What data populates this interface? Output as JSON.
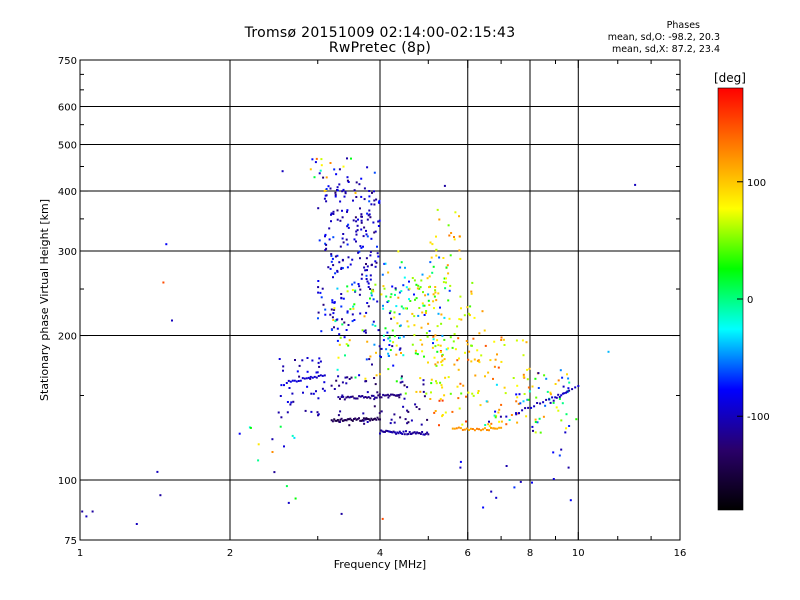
{
  "header": {
    "title_line1": "Tromsø 20151009 02:14:00-02:15:43",
    "title_line2": "RwPretec (8p)",
    "stats_title": "Phases",
    "stats_o": "mean, sd,O: -98.2, 20.3",
    "stats_x": "mean, sd,X:  87.2, 23.4"
  },
  "chart_data": {
    "type": "scatter",
    "title": "Tromsø 20151009 02:14:00-02:15:43",
    "subtitle": "RwPretec (8p)",
    "xlabel": "Frequency [MHz]",
    "ylabel": "Stationary phase Virtual Height [km]",
    "xscale": "log",
    "yscale": "log",
    "xlim": [
      1,
      16
    ],
    "ylim": [
      75,
      750
    ],
    "x_ticks": [
      1,
      2,
      4,
      6,
      8,
      10,
      16
    ],
    "x_minor_ticks": [
      3,
      5,
      7,
      9,
      12,
      14
    ],
    "y_ticks": [
      75,
      100,
      200,
      300,
      400,
      500,
      600,
      750
    ],
    "y_minor_ticks": [
      150,
      250,
      350,
      450,
      550,
      650,
      700
    ],
    "grid": true,
    "colorbar": {
      "label": "[deg]",
      "range": [
        -180,
        180
      ],
      "tick_values": [
        100,
        0,
        -100
      ],
      "tick_labels": [
        "100",
        "0",
        "-100"
      ],
      "colors": [
        "#000000",
        "#2a006a",
        "#0000ff",
        "#00ffff",
        "#00ff00",
        "#ffff00",
        "#ff8000",
        "#ff0000"
      ]
    },
    "clusters": [
      {
        "x": [
          3.0,
          4.0
        ],
        "y": [
          200,
          450
        ],
        "phase": [
          -130,
          -60
        ],
        "n": 160
      },
      {
        "x": [
          3.1,
          3.9
        ],
        "y": [
          260,
          420
        ],
        "phase": [
          -120,
          -90
        ],
        "n": 60
      },
      {
        "x": [
          4.0,
          5.6
        ],
        "y": [
          180,
          300
        ],
        "phase": [
          -80,
          120
        ],
        "n": 110
      },
      {
        "x": [
          3.2,
          4.5
        ],
        "y": [
          160,
          260
        ],
        "phase": [
          -120,
          120
        ],
        "n": 90
      },
      {
        "x": [
          4.5,
          6.5
        ],
        "y": [
          150,
          260
        ],
        "phase": [
          30,
          120
        ],
        "n": 90
      },
      {
        "x": [
          5.0,
          8.0
        ],
        "y": [
          130,
          200
        ],
        "phase": [
          60,
          160
        ],
        "n": 90
      },
      {
        "x": [
          6.5,
          10.0
        ],
        "y": [
          125,
          170
        ],
        "phase": [
          -120,
          140
        ],
        "n": 70
      },
      {
        "x": [
          2.5,
          3.2
        ],
        "y": [
          135,
          180
        ],
        "phase": [
          -120,
          -80
        ],
        "n": 45
      },
      {
        "x": [
          3.2,
          5.0
        ],
        "y": [
          130,
          165
        ],
        "phase": [
          -140,
          -100
        ],
        "n": 60
      },
      {
        "x": [
          2.9,
          3.6
        ],
        "y": [
          380,
          470
        ],
        "phase": [
          -110,
          140
        ],
        "n": 20
      },
      {
        "x": [
          5.0,
          5.8
        ],
        "y": [
          280,
          370
        ],
        "phase": [
          40,
          130
        ],
        "n": 20
      },
      {
        "x": [
          2.0,
          2.8
        ],
        "y": [
          85,
          130
        ],
        "phase": [
          -120,
          140
        ],
        "n": 15
      },
      {
        "x": [
          5.5,
          10.0
        ],
        "y": [
          85,
          120
        ],
        "phase": [
          -110,
          -60
        ],
        "n": 15
      }
    ],
    "lines": [
      {
        "x": [
          3.2,
          4.0
        ],
        "y": [
          133,
          134
        ],
        "phase": -140,
        "n": 40
      },
      {
        "x": [
          4.0,
          5.0
        ],
        "y": [
          126,
          125
        ],
        "phase": -110,
        "n": 40
      },
      {
        "x": [
          3.3,
          4.4
        ],
        "y": [
          148,
          150
        ],
        "phase": -120,
        "n": 40
      },
      {
        "x": [
          2.6,
          3.1
        ],
        "y": [
          160,
          165
        ],
        "phase": -95,
        "n": 20
      },
      {
        "x": [
          5.6,
          7.0
        ],
        "y": [
          128,
          128
        ],
        "phase": 120,
        "n": 25
      },
      {
        "x": [
          7.5,
          9.5
        ],
        "y": [
          138,
          152
        ],
        "phase": -100,
        "n": 18
      },
      {
        "x": [
          8.8,
          10.0
        ],
        "y": [
          145,
          157
        ],
        "phase": -100,
        "n": 10
      }
    ],
    "isolated_points": [
      {
        "x": 1.01,
        "y": 86,
        "phase": -110
      },
      {
        "x": 1.03,
        "y": 84,
        "phase": -100
      },
      {
        "x": 1.06,
        "y": 86,
        "phase": -110
      },
      {
        "x": 1.3,
        "y": 81,
        "phase": -100
      },
      {
        "x": 1.43,
        "y": 104,
        "phase": -100
      },
      {
        "x": 1.45,
        "y": 93,
        "phase": -110
      },
      {
        "x": 1.49,
        "y": 310,
        "phase": -80
      },
      {
        "x": 1.53,
        "y": 215,
        "phase": -100
      },
      {
        "x": 1.47,
        "y": 258,
        "phase": 150
      },
      {
        "x": 2.55,
        "y": 440,
        "phase": -100
      },
      {
        "x": 5.4,
        "y": 410,
        "phase": -110
      },
      {
        "x": 13.0,
        "y": 412,
        "phase": -100
      },
      {
        "x": 11.5,
        "y": 185,
        "phase": -40
      },
      {
        "x": 3.35,
        "y": 85,
        "phase": -110
      },
      {
        "x": 4.05,
        "y": 83,
        "phase": 150
      }
    ]
  }
}
